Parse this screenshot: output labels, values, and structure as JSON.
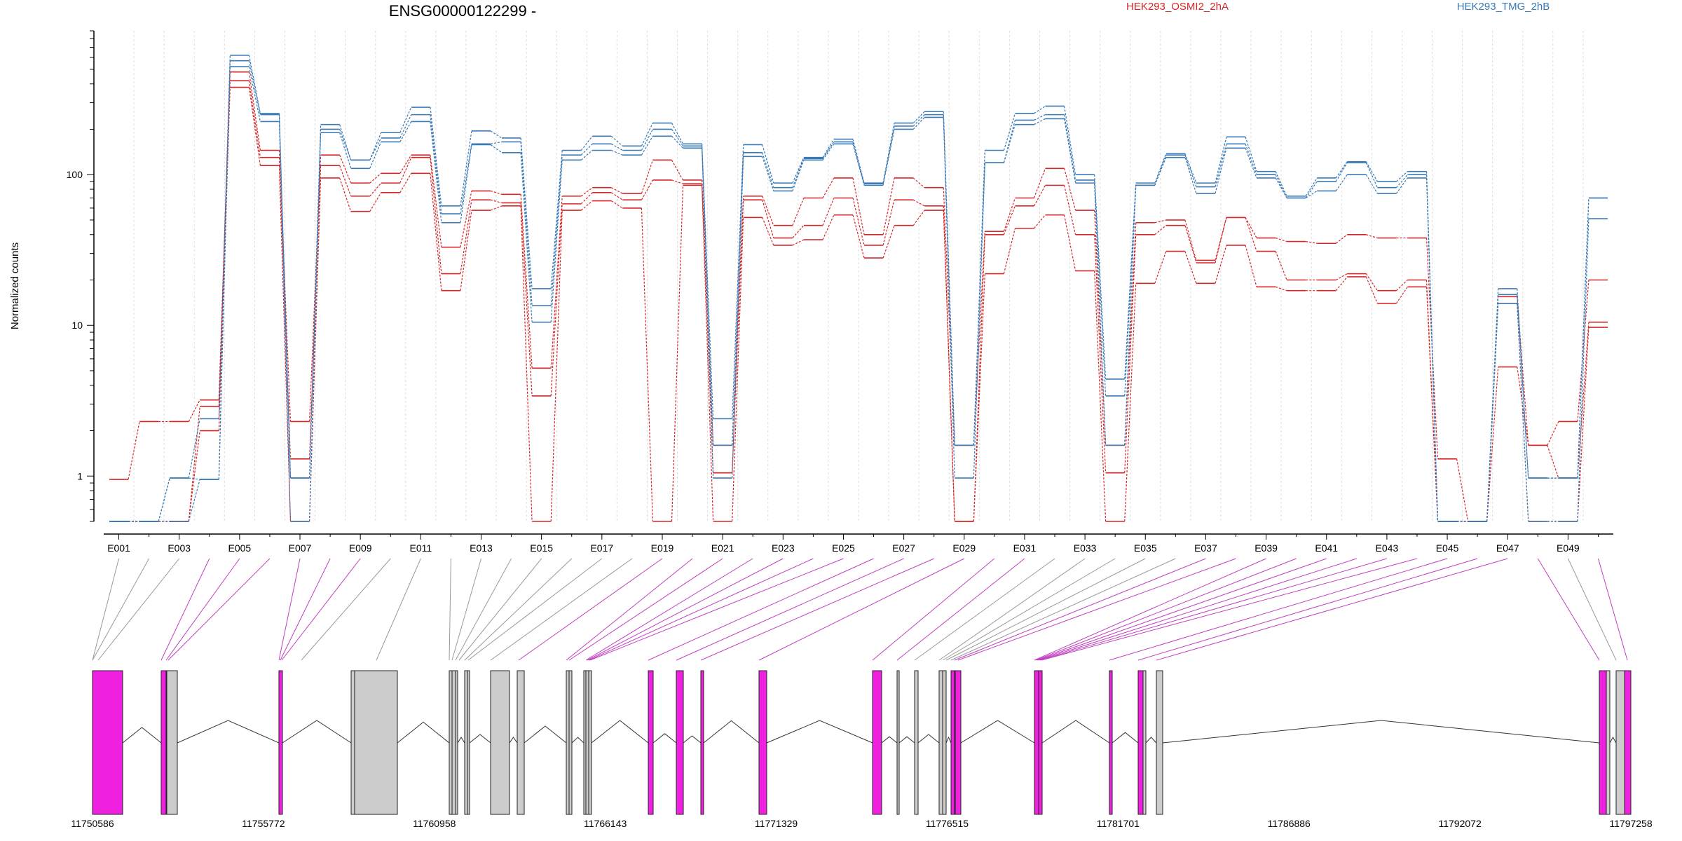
{
  "chart_data": {
    "type": "line",
    "title": "ENSG00000122299 -",
    "ylabel": "Normalized counts",
    "yscale": "log",
    "ylim": [
      0.5,
      900
    ],
    "yticks": [
      1,
      10,
      100
    ],
    "ytick_labels": [
      "1",
      "10",
      "100"
    ],
    "legend": {
      "placement": "top",
      "entries": [
        "HEK293_OSMI2_2hA",
        "HEK293_TMG_2hB"
      ]
    },
    "colors": {
      "HEK293_OSMI2_2hA": "#d62728",
      "HEK293_TMG_2hB": "#3a7ab5",
      "highlight_exon": "#f020e0",
      "plain_exon": "#cccccc",
      "connector_plain": "#999999",
      "connector_highlight": "#c040c0"
    },
    "categories": [
      "E001",
      "E002",
      "E003",
      "E004",
      "E005",
      "E006",
      "E007",
      "E008",
      "E009",
      "E010",
      "E011",
      "E012",
      "E013",
      "E014",
      "E015",
      "E016",
      "E017",
      "E018",
      "E019",
      "E020",
      "E021",
      "E022",
      "E023",
      "E024",
      "E025",
      "E026",
      "E027",
      "E028",
      "E029",
      "E030",
      "E031",
      "E032",
      "E033",
      "E034",
      "E035",
      "E036",
      "E037",
      "E038",
      "E039",
      "E040",
      "E041",
      "E042",
      "E043",
      "E044",
      "E045",
      "E046",
      "E047",
      "E048",
      "E049",
      "E050"
    ],
    "xtick_labels": [
      "E001",
      "E003",
      "E005",
      "E007",
      "E009",
      "E011",
      "E013",
      "E015",
      "E017",
      "E019",
      "E021",
      "E023",
      "E025",
      "E027",
      "E029",
      "E031",
      "E033",
      "E035",
      "E037",
      "E039",
      "E041",
      "E043",
      "E045",
      "E047",
      "E049"
    ],
    "series": [
      {
        "name": "HEK293_OSMI2_2hA",
        "values": [
          0.95,
          2.3,
          2.3,
          3.2,
          480,
          145,
          2.3,
          135,
          88,
          102,
          135,
          33,
          78,
          74,
          5.2,
          72,
          82,
          75,
          125,
          92,
          1.6,
          72,
          46,
          70,
          95,
          40,
          95,
          82,
          1.6,
          42,
          70,
          110,
          58,
          1.6,
          48,
          50,
          27,
          52,
          38,
          36,
          35,
          40,
          38,
          38,
          1.3,
          0.5,
          5.3,
          1.6,
          2.3,
          20
        ]
      },
      {
        "name": "HEK293_OSMI2_2hA",
        "values": [
          0.5,
          0.5,
          0.5,
          2.9,
          420,
          130,
          1.3,
          115,
          72,
          88,
          130,
          22,
          68,
          65,
          3.4,
          64,
          76,
          68,
          92,
          87,
          1.05,
          68,
          38,
          46,
          70,
          34,
          68,
          62,
          0.5,
          40,
          62,
          85,
          40,
          1.05,
          40,
          46,
          26,
          52,
          31,
          20,
          20,
          22,
          17,
          20,
          0.5,
          0.5,
          15.5,
          1.6,
          0.97,
          10.5
        ]
      },
      {
        "name": "HEK293_OSMI2_2hA",
        "values": [
          0.5,
          0.5,
          0.5,
          2.0,
          380,
          115,
          0.5,
          95,
          57,
          76,
          102,
          17,
          58,
          62,
          0.5,
          58,
          67,
          60,
          0.5,
          85,
          0.5,
          52,
          34,
          37,
          54,
          28,
          46,
          58,
          0.5,
          22,
          44,
          54,
          23,
          0.5,
          19,
          31,
          19,
          34,
          18,
          17,
          17,
          21,
          14,
          18,
          0.5,
          0.5,
          14,
          0.5,
          0.5,
          9.7
        ]
      },
      {
        "name": "HEK293_TMG_2hB",
        "values": [
          0.5,
          0.5,
          0.97,
          2.4,
          620,
          255,
          0.97,
          215,
          125,
          190,
          280,
          62,
          195,
          175,
          17.5,
          145,
          180,
          155,
          220,
          160,
          2.4,
          158,
          88,
          130,
          172,
          88,
          220,
          262,
          1.6,
          145,
          255,
          285,
          100,
          4.4,
          88,
          138,
          88,
          178,
          105,
          72,
          95,
          122,
          90,
          105,
          0.5,
          0.5,
          17.5,
          0.97,
          0.97,
          70
        ]
      },
      {
        "name": "HEK293_TMG_2hB",
        "values": [
          0.5,
          0.5,
          0.97,
          0.95,
          570,
          250,
          0.97,
          200,
          125,
          175,
          250,
          55,
          160,
          165,
          13.5,
          135,
          160,
          145,
          200,
          155,
          1.6,
          140,
          82,
          128,
          165,
          87,
          210,
          250,
          1.6,
          120,
          230,
          250,
          92,
          3.4,
          85,
          135,
          83,
          160,
          100,
          70,
          90,
          120,
          82,
          100,
          0.5,
          0.5,
          16,
          0.97,
          0.97,
          70
        ]
      },
      {
        "name": "HEK293_TMG_2hB",
        "values": [
          0.5,
          0.5,
          0.5,
          0.95,
          520,
          225,
          0.5,
          190,
          110,
          165,
          225,
          48,
          158,
          140,
          10.5,
          125,
          145,
          135,
          180,
          150,
          0.97,
          132,
          78,
          125,
          160,
          85,
          200,
          240,
          0.97,
          120,
          215,
          235,
          88,
          1.6,
          85,
          130,
          75,
          150,
          95,
          70,
          78,
          100,
          75,
          95,
          0.5,
          0.5,
          14,
          0.5,
          0.5,
          51
        ]
      }
    ],
    "genomic_axis": {
      "tick_labels": [
        "11750586",
        "11755772",
        "11760958",
        "11766143",
        "11771329",
        "11776515",
        "11781701",
        "11786886",
        "11792072",
        "11797258"
      ]
    }
  }
}
